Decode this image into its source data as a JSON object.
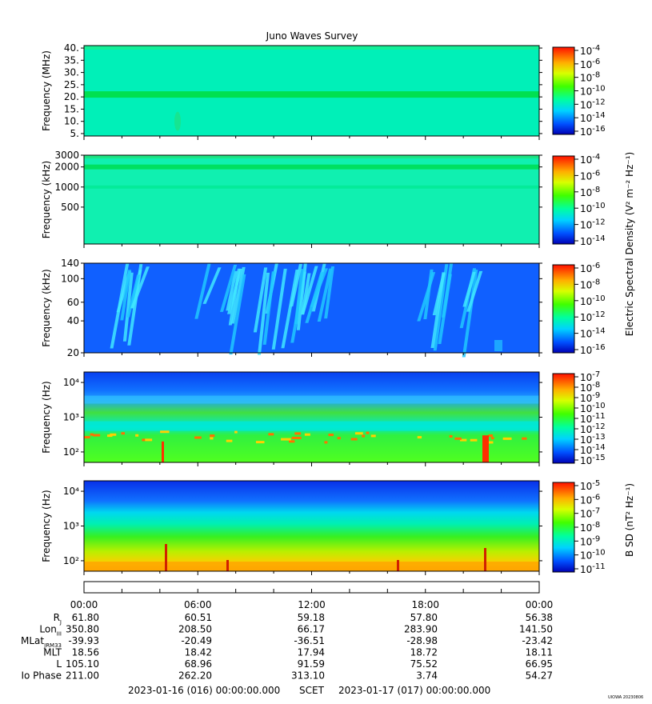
{
  "title": "Juno Waves Survey",
  "credit": "UIOWA 20230806",
  "footer": {
    "start": "2023-01-16 (016) 00:00:00.000",
    "label": "SCET",
    "end": "2023-01-17 (017) 00:00:00.000"
  },
  "time_ticks": [
    "00:00",
    "06:00",
    "12:00",
    "18:00",
    "00:00"
  ],
  "ephemeris": [
    {
      "label": "R",
      "sub": "J",
      "values": [
        "61.80",
        "60.51",
        "59.18",
        "57.80",
        "56.38"
      ]
    },
    {
      "label": "Lon",
      "sub": "III",
      "values": [
        "350.80",
        "208.50",
        "66.17",
        "283.90",
        "141.50"
      ]
    },
    {
      "label": "MLat",
      "sub": "JRM33",
      "values": [
        "-39.93",
        "-20.49",
        "-36.51",
        "-28.98",
        "-23.42"
      ]
    },
    {
      "label": "MLT",
      "sub": "",
      "values": [
        "18.56",
        "18.42",
        "17.94",
        "18.72",
        "18.11"
      ]
    },
    {
      "label": "L",
      "sub": "",
      "values": [
        "105.10",
        "68.96",
        "91.59",
        "75.52",
        "66.95"
      ]
    },
    {
      "label": "Io Phase",
      "sub": "",
      "values": [
        "211.00",
        "262.20",
        "313.10",
        "3.74",
        "54.27"
      ]
    }
  ],
  "colorbar_labels": {
    "electric": "Electric Spectral Density (V² m⁻² Hz⁻¹)",
    "magnetic": "B SD (nT² Hz⁻¹)"
  },
  "chart_data": [
    {
      "type": "heatmap",
      "ylabel": "Frequency (MHz)",
      "yscale": "linear",
      "ylim": [
        4,
        41
      ],
      "yticks": [
        "5.",
        "10.",
        "15.",
        "20.",
        "25.",
        "30.",
        "35.",
        "40."
      ],
      "ytick_values": [
        5,
        10,
        15,
        20,
        25,
        30,
        35,
        40
      ],
      "xlim": [
        "00:00",
        "00:00"
      ],
      "colorbar": {
        "ticks": [
          "10-4",
          "10-6",
          "10-8",
          "10-10",
          "10-12",
          "10-14",
          "10-16"
        ],
        "exponents": [
          -4,
          -6,
          -8,
          -10,
          -12,
          -14,
          -16
        ]
      },
      "features": "uniform background with a narrow band near 21 MHz"
    },
    {
      "type": "heatmap",
      "ylabel": "Frequency (kHz)",
      "yscale": "log",
      "ylim": [
        140,
        3000
      ],
      "yticks": [
        "500",
        "1000",
        "2000",
        "3000"
      ],
      "ytick_values": [
        500,
        1000,
        2000,
        3000
      ],
      "colorbar": {
        "ticks": [
          "10-4",
          "10-6",
          "10-8",
          "10-10",
          "10-12",
          "10-14"
        ],
        "exponents": [
          -4,
          -6,
          -8,
          -10,
          -12,
          -14
        ]
      },
      "features": "uniform background with band near 2000 kHz"
    },
    {
      "type": "heatmap",
      "ylabel": "Frequency (kHz)",
      "yscale": "log",
      "ylim": [
        20,
        140
      ],
      "yticks": [
        "20",
        "40",
        "60",
        "100",
        "140"
      ],
      "ytick_values": [
        20,
        40,
        60,
        100,
        140
      ],
      "colorbar": {
        "ticks": [
          "10-6",
          "10-8",
          "10-10",
          "10-12",
          "10-14",
          "10-16"
        ],
        "exponents": [
          -6,
          -8,
          -10,
          -12,
          -14,
          -16
        ]
      },
      "features": "blue background with drifting cyan emission bursts"
    },
    {
      "type": "heatmap",
      "ylabel": "Frequency (Hz)",
      "yscale": "log",
      "ylim": [
        50,
        20000
      ],
      "yticks": [
        "10²",
        "10³",
        "10⁴"
      ],
      "ytick_values": [
        100,
        1000,
        10000
      ],
      "colorbar": {
        "ticks": [
          "10-7",
          "10-8",
          "10-9",
          "10-10",
          "10-11",
          "10-12",
          "10-13",
          "10-14",
          "10-15"
        ],
        "exponents": [
          -7,
          -8,
          -9,
          -10,
          -11,
          -12,
          -13,
          -14,
          -15
        ]
      },
      "features": "blue high frequencies, cyan band, green/yellow low frequencies with orange spots"
    },
    {
      "type": "heatmap",
      "ylabel": "Frequency (Hz)",
      "yscale": "log",
      "ylim": [
        50,
        20000
      ],
      "yticks": [
        "10²",
        "10³",
        "10⁴"
      ],
      "ytick_values": [
        100,
        1000,
        10000
      ],
      "colorbar": {
        "ticks": [
          "10-5",
          "10-6",
          "10-7",
          "10-8",
          "10-9",
          "10-10",
          "10-11"
        ],
        "exponents": [
          -5,
          -6,
          -7,
          -8,
          -9,
          -10,
          -11
        ]
      },
      "features": "smooth gradient from blue at top to yellow/orange at bottom"
    }
  ]
}
